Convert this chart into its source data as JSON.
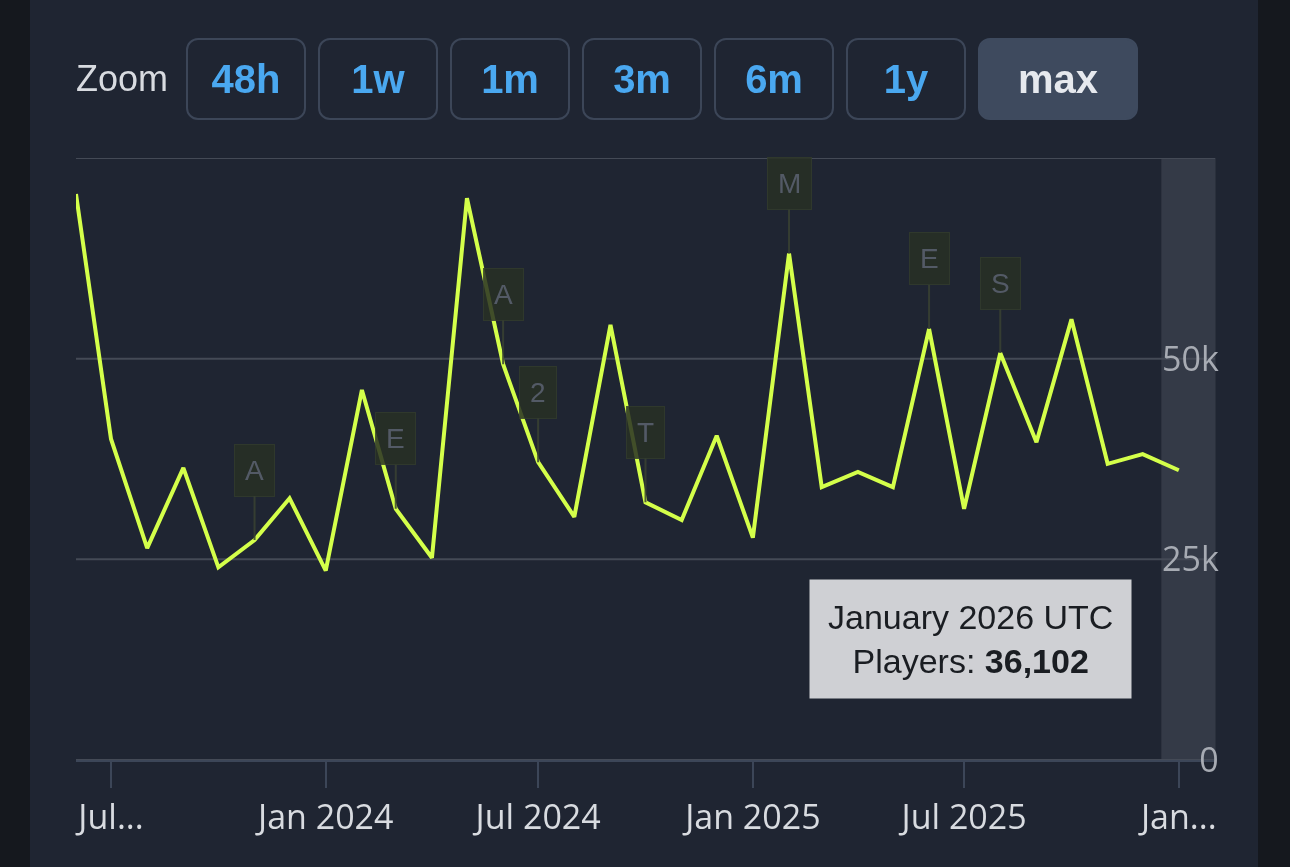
{
  "chart_data": {
    "type": "line",
    "x": [
      "2023-06",
      "2023-07",
      "2023-08",
      "2023-09",
      "2023-10",
      "2023-11",
      "2023-12",
      "2024-01",
      "2024-02",
      "2024-03",
      "2024-04",
      "2024-05",
      "2024-06",
      "2024-07",
      "2024-08",
      "2024-09",
      "2024-10",
      "2024-11",
      "2024-12",
      "2025-01",
      "2025-02",
      "2025-03",
      "2025-04",
      "2025-05",
      "2025-06",
      "2025-07",
      "2025-08",
      "2025-09",
      "2025-10",
      "2025-11",
      "2025-12",
      "2026-01"
    ],
    "series": [
      {
        "color": "#d4ff4a",
        "values": [
          70500,
          40000,
          26400,
          36400,
          24000,
          27400,
          32600,
          23600,
          46100,
          31300,
          25200,
          70000,
          49300,
          37100,
          30300,
          54200,
          32100,
          29900,
          40400,
          27700,
          63100,
          34000,
          35900,
          34000,
          53700,
          31300,
          50700,
          39600,
          54900,
          36900,
          38100,
          36102
        ]
      }
    ],
    "xlim": [
      "2023-06-01",
      "2026-02-01"
    ],
    "xticks": [
      {
        "value": "2023-07",
        "label": "Jul..."
      },
      {
        "value": "2024-01",
        "label": "Jan 2024"
      },
      {
        "value": "2024-07",
        "label": "Jul 2024"
      },
      {
        "value": "2025-01",
        "label": "Jan 2025"
      },
      {
        "value": "2025-07",
        "label": "Jul 2025"
      },
      {
        "value": "2026-01",
        "label": "Jan..."
      }
    ],
    "ylim": [
      0,
      75000
    ],
    "yticks": [
      {
        "value": 0,
        "label": "0"
      },
      {
        "value": 25000,
        "label": "25k"
      },
      {
        "value": 50000,
        "label": "50k"
      },
      {
        "value": 75000,
        "label": null
      }
    ],
    "grid": "y",
    "legend": false,
    "marker": "none",
    "line_style": "solid",
    "bands": [
      {
        "axis": "x",
        "from": "2025-12-17",
        "to": "2026-02-01",
        "color": "#3a404c"
      }
    ],
    "annotations": [
      "Zoom",
      "48h",
      "1w",
      "1m",
      "3m",
      "6m",
      "1y",
      "max",
      {
        "text": "A",
        "x": "2023-11",
        "y": 27400
      },
      {
        "text": "E",
        "x": "2024-03",
        "y": 31300
      },
      {
        "text": "A",
        "x": "2024-06",
        "y": 49300
      },
      {
        "text": "2",
        "x": "2024-07",
        "y": 37100
      },
      {
        "text": "T",
        "x": "2024-10",
        "y": 32100
      },
      {
        "text": "M",
        "x": "2025-02",
        "y": 63100
      },
      {
        "text": "E",
        "x": "2025-06",
        "y": 53700
      },
      {
        "text": "S",
        "x": "2025-08",
        "y": 50700
      },
      "January 2026 UTC\nPlayers: 36,102"
    ]
  }
}
